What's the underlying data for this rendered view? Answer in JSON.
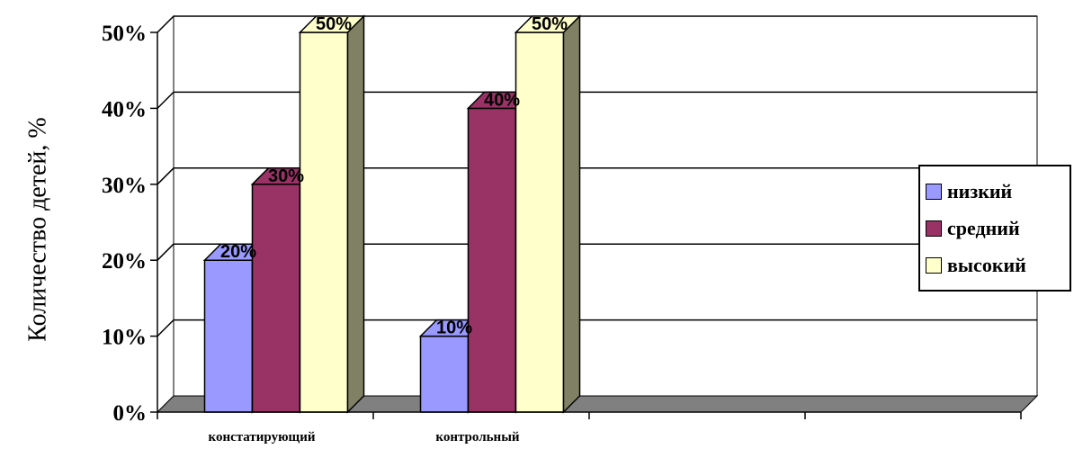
{
  "chart_data": {
    "type": "bar",
    "style": "3d-clustered-column",
    "categories": [
      "констатирующий",
      "контрольный"
    ],
    "series": [
      {
        "name": "низкий",
        "values": [
          20,
          10
        ],
        "color": "#9999ff"
      },
      {
        "name": "средний",
        "values": [
          30,
          40
        ],
        "color": "#993366"
      },
      {
        "name": "высокий",
        "values": [
          50,
          50
        ],
        "color": "#ffffcc"
      }
    ],
    "ylabel": "Количество детей, %",
    "ylim": [
      0,
      50
    ],
    "yticks": [
      "0%",
      "10%",
      "20%",
      "30%",
      "40%",
      "50%"
    ],
    "data_labels": [
      [
        "20%",
        "10%"
      ],
      [
        "30%",
        "40%"
      ],
      [
        "50%",
        "50%"
      ]
    ],
    "grid": true,
    "legend_position": "right",
    "wall_color": "#ffffff",
    "floor_color": "#808080",
    "bar_side_color": "#808064"
  }
}
